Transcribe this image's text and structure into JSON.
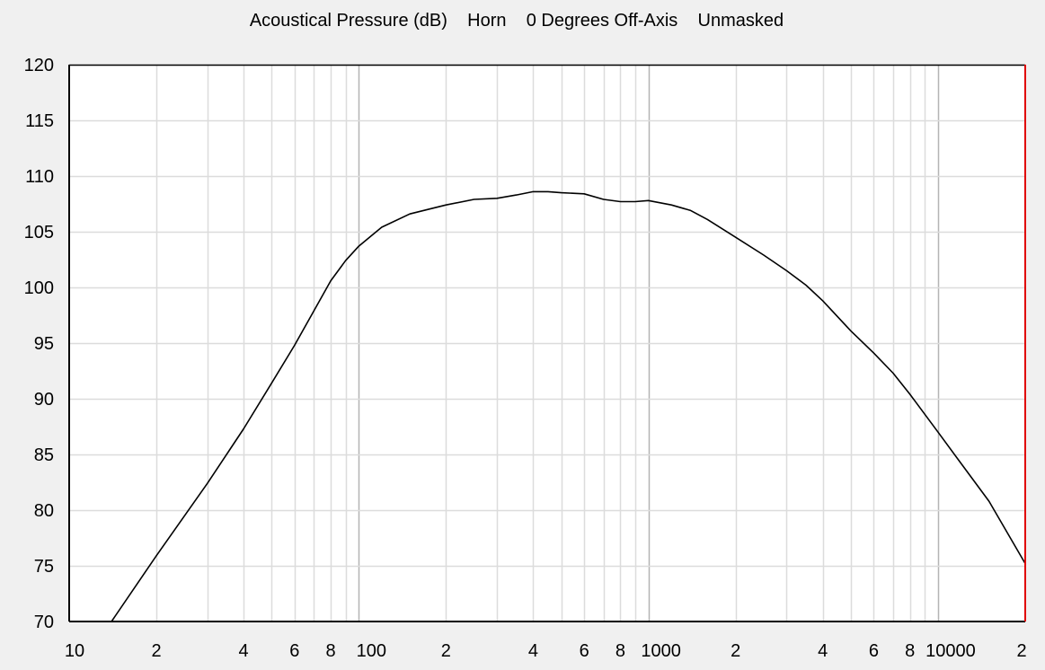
{
  "chart_data": {
    "type": "line",
    "title": "Acoustical Pressure (dB)    Horn    0 Degrees Off-Axis    Unmasked",
    "xlabel": "",
    "ylabel": "",
    "x_scale": "log",
    "xlim": [
      10,
      20000
    ],
    "ylim": [
      70,
      120
    ],
    "grid": true,
    "y_ticks": [
      70,
      75,
      80,
      85,
      90,
      95,
      100,
      105,
      110,
      115,
      120
    ],
    "x_tick_labels": [
      {
        "value": 10,
        "label": "10"
      },
      {
        "value": 20,
        "label": "2"
      },
      {
        "value": 40,
        "label": "4"
      },
      {
        "value": 60,
        "label": "6"
      },
      {
        "value": 80,
        "label": "8"
      },
      {
        "value": 100,
        "label": "100"
      },
      {
        "value": 200,
        "label": "2"
      },
      {
        "value": 400,
        "label": "4"
      },
      {
        "value": 600,
        "label": "6"
      },
      {
        "value": 800,
        "label": "8"
      },
      {
        "value": 1000,
        "label": "1000"
      },
      {
        "value": 2000,
        "label": "2"
      },
      {
        "value": 4000,
        "label": "4"
      },
      {
        "value": 6000,
        "label": "6"
      },
      {
        "value": 8000,
        "label": "8"
      },
      {
        "value": 10000,
        "label": "10000"
      },
      {
        "value": 20000,
        "label": "2"
      }
    ],
    "colors": {
      "background": "#f0f0f0",
      "plot_background": "#ffffff",
      "grid_minor": "#dcdcdc",
      "grid_major": "#b4b4b4",
      "line": "#000000",
      "right_border": "#e00000"
    },
    "series": [
      {
        "x": [
          14,
          20,
          30,
          40,
          50,
          60,
          70,
          80,
          90,
          100,
          110,
          120,
          150,
          200,
          250,
          300,
          350,
          400,
          450,
          500,
          600,
          700,
          800,
          900,
          1000,
          1200,
          1400,
          1600,
          2000,
          2500,
          3000,
          3500,
          4000,
          5000,
          6000,
          7000,
          8000,
          10000,
          12000,
          15000,
          20000
        ],
        "y": [
          70.0,
          75.9,
          82.4,
          87.3,
          91.4,
          94.8,
          97.9,
          100.6,
          102.4,
          103.7,
          104.6,
          105.4,
          106.6,
          107.4,
          107.9,
          108.0,
          108.3,
          108.6,
          108.6,
          108.5,
          108.4,
          107.9,
          107.7,
          107.7,
          107.8,
          107.4,
          106.9,
          106.1,
          104.5,
          102.9,
          101.5,
          100.2,
          98.8,
          96.1,
          94.1,
          92.3,
          90.4,
          87.0,
          84.2,
          80.8,
          75.2
        ]
      }
    ]
  }
}
